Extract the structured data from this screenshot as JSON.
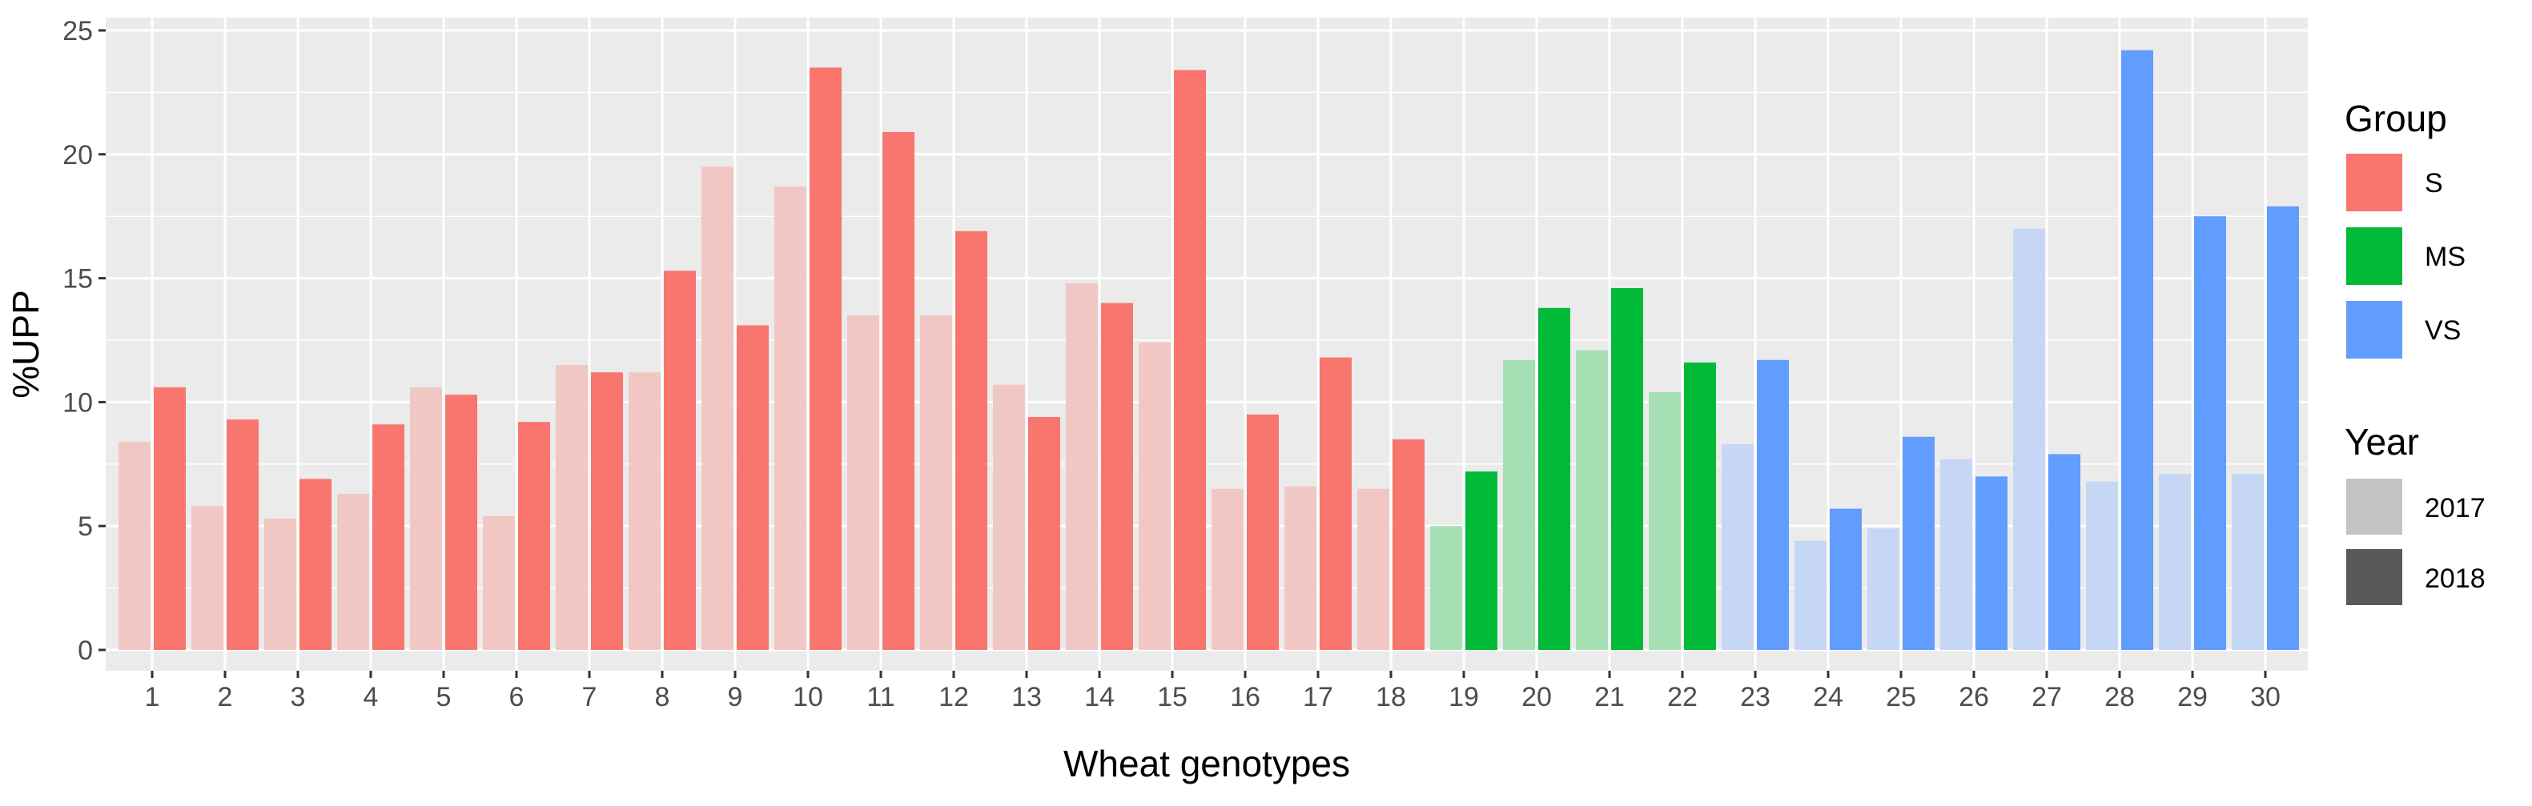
{
  "chart_data": {
    "type": "bar",
    "xlabel": "Wheat genotypes",
    "ylabel": "%UPP",
    "ylim": [
      0,
      25.5
    ],
    "yticks": [
      0,
      5,
      10,
      15,
      20,
      25
    ],
    "grid": true,
    "legend_position": "right",
    "categories": [
      "1",
      "2",
      "3",
      "4",
      "5",
      "6",
      "7",
      "8",
      "9",
      "10",
      "11",
      "12",
      "13",
      "14",
      "15",
      "16",
      "17",
      "18",
      "19",
      "20",
      "21",
      "22",
      "23",
      "24",
      "25",
      "26",
      "27",
      "28",
      "29",
      "30"
    ],
    "groups_by_category": [
      "S",
      "S",
      "S",
      "S",
      "S",
      "S",
      "S",
      "S",
      "S",
      "S",
      "S",
      "S",
      "S",
      "S",
      "S",
      "S",
      "S",
      "S",
      "MS",
      "MS",
      "MS",
      "MS",
      "VS",
      "VS",
      "VS",
      "VS",
      "VS",
      "VS",
      "VS",
      "VS"
    ],
    "series": [
      {
        "name": "2017",
        "values": [
          8.4,
          5.8,
          5.3,
          6.3,
          10.6,
          5.4,
          11.5,
          11.2,
          19.5,
          18.7,
          13.5,
          13.5,
          10.7,
          14.8,
          12.4,
          6.5,
          6.6,
          6.5,
          5.0,
          11.7,
          12.1,
          10.4,
          8.3,
          4.4,
          4.9,
          7.7,
          17.0,
          6.8,
          7.1,
          7.1
        ]
      },
      {
        "name": "2018",
        "values": [
          10.6,
          9.3,
          6.9,
          9.1,
          10.3,
          9.2,
          11.2,
          15.3,
          13.1,
          23.5,
          20.9,
          16.9,
          9.4,
          14.0,
          23.4,
          9.5,
          11.8,
          8.5,
          7.2,
          13.8,
          14.6,
          11.6,
          11.7,
          5.7,
          8.6,
          7.0,
          7.9,
          24.2,
          17.5,
          17.9
        ]
      }
    ],
    "legend": {
      "group_title": "Group",
      "groups": [
        {
          "label": "S",
          "color": "#F8766D"
        },
        {
          "label": "MS",
          "color": "#00BA38"
        },
        {
          "label": "VS",
          "color": "#619CFF"
        }
      ],
      "year_title": "Year",
      "years": [
        {
          "label": "2017",
          "color": "#c4c4c4"
        },
        {
          "label": "2018",
          "color": "#595959"
        }
      ]
    },
    "colors": {
      "panel_background": "#EBEBEB",
      "grid": "#ffffff",
      "faded_2017": {
        "S": "#F1C7C4",
        "MS": "#A7DFB5",
        "VS": "#C6D6F5"
      }
    }
  }
}
